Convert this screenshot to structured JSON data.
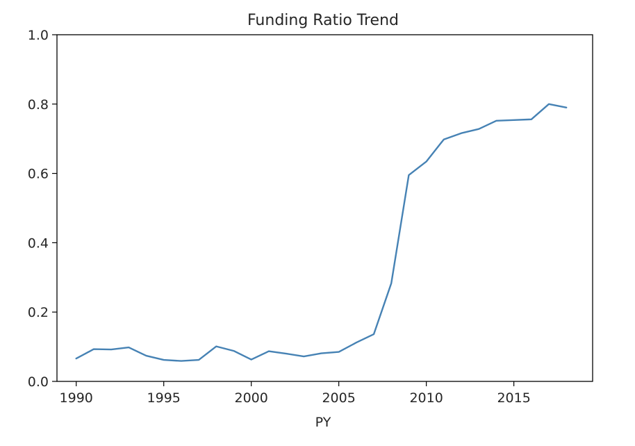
{
  "chart_data": {
    "type": "line",
    "title": "Funding Ratio Trend",
    "xlabel": "PY",
    "ylabel": "",
    "xlim": [
      1988.9,
      2019.5
    ],
    "ylim": [
      0.0,
      1.0
    ],
    "x_ticks": [
      1990,
      1995,
      2000,
      2005,
      2010,
      2015
    ],
    "x_tick_labels": [
      "1990",
      "1995",
      "2000",
      "2005",
      "2010",
      "2015"
    ],
    "y_ticks": [
      0.0,
      0.2,
      0.4,
      0.6,
      0.8,
      1.0
    ],
    "y_tick_labels": [
      "0.0",
      "0.2",
      "0.4",
      "0.6",
      "0.8",
      "1.0"
    ],
    "grid": false,
    "line_color": "#4682b4",
    "x": [
      1990,
      1991,
      1992,
      1993,
      1994,
      1995,
      1996,
      1997,
      1998,
      1999,
      2000,
      2001,
      2002,
      2003,
      2004,
      2005,
      2006,
      2007,
      2008,
      2009,
      2010,
      2011,
      2012,
      2013,
      2014,
      2015,
      2016,
      2017,
      2018
    ],
    "series": [
      {
        "values": [
          0.066,
          0.093,
          0.092,
          0.098,
          0.074,
          0.062,
          0.059,
          0.062,
          0.101,
          0.088,
          0.063,
          0.087,
          0.08,
          0.072,
          0.081,
          0.085,
          0.112,
          0.136,
          0.283,
          0.595,
          0.634,
          0.698,
          0.716,
          0.728,
          0.752,
          0.754,
          0.756,
          0.8,
          0.79
        ]
      }
    ]
  }
}
